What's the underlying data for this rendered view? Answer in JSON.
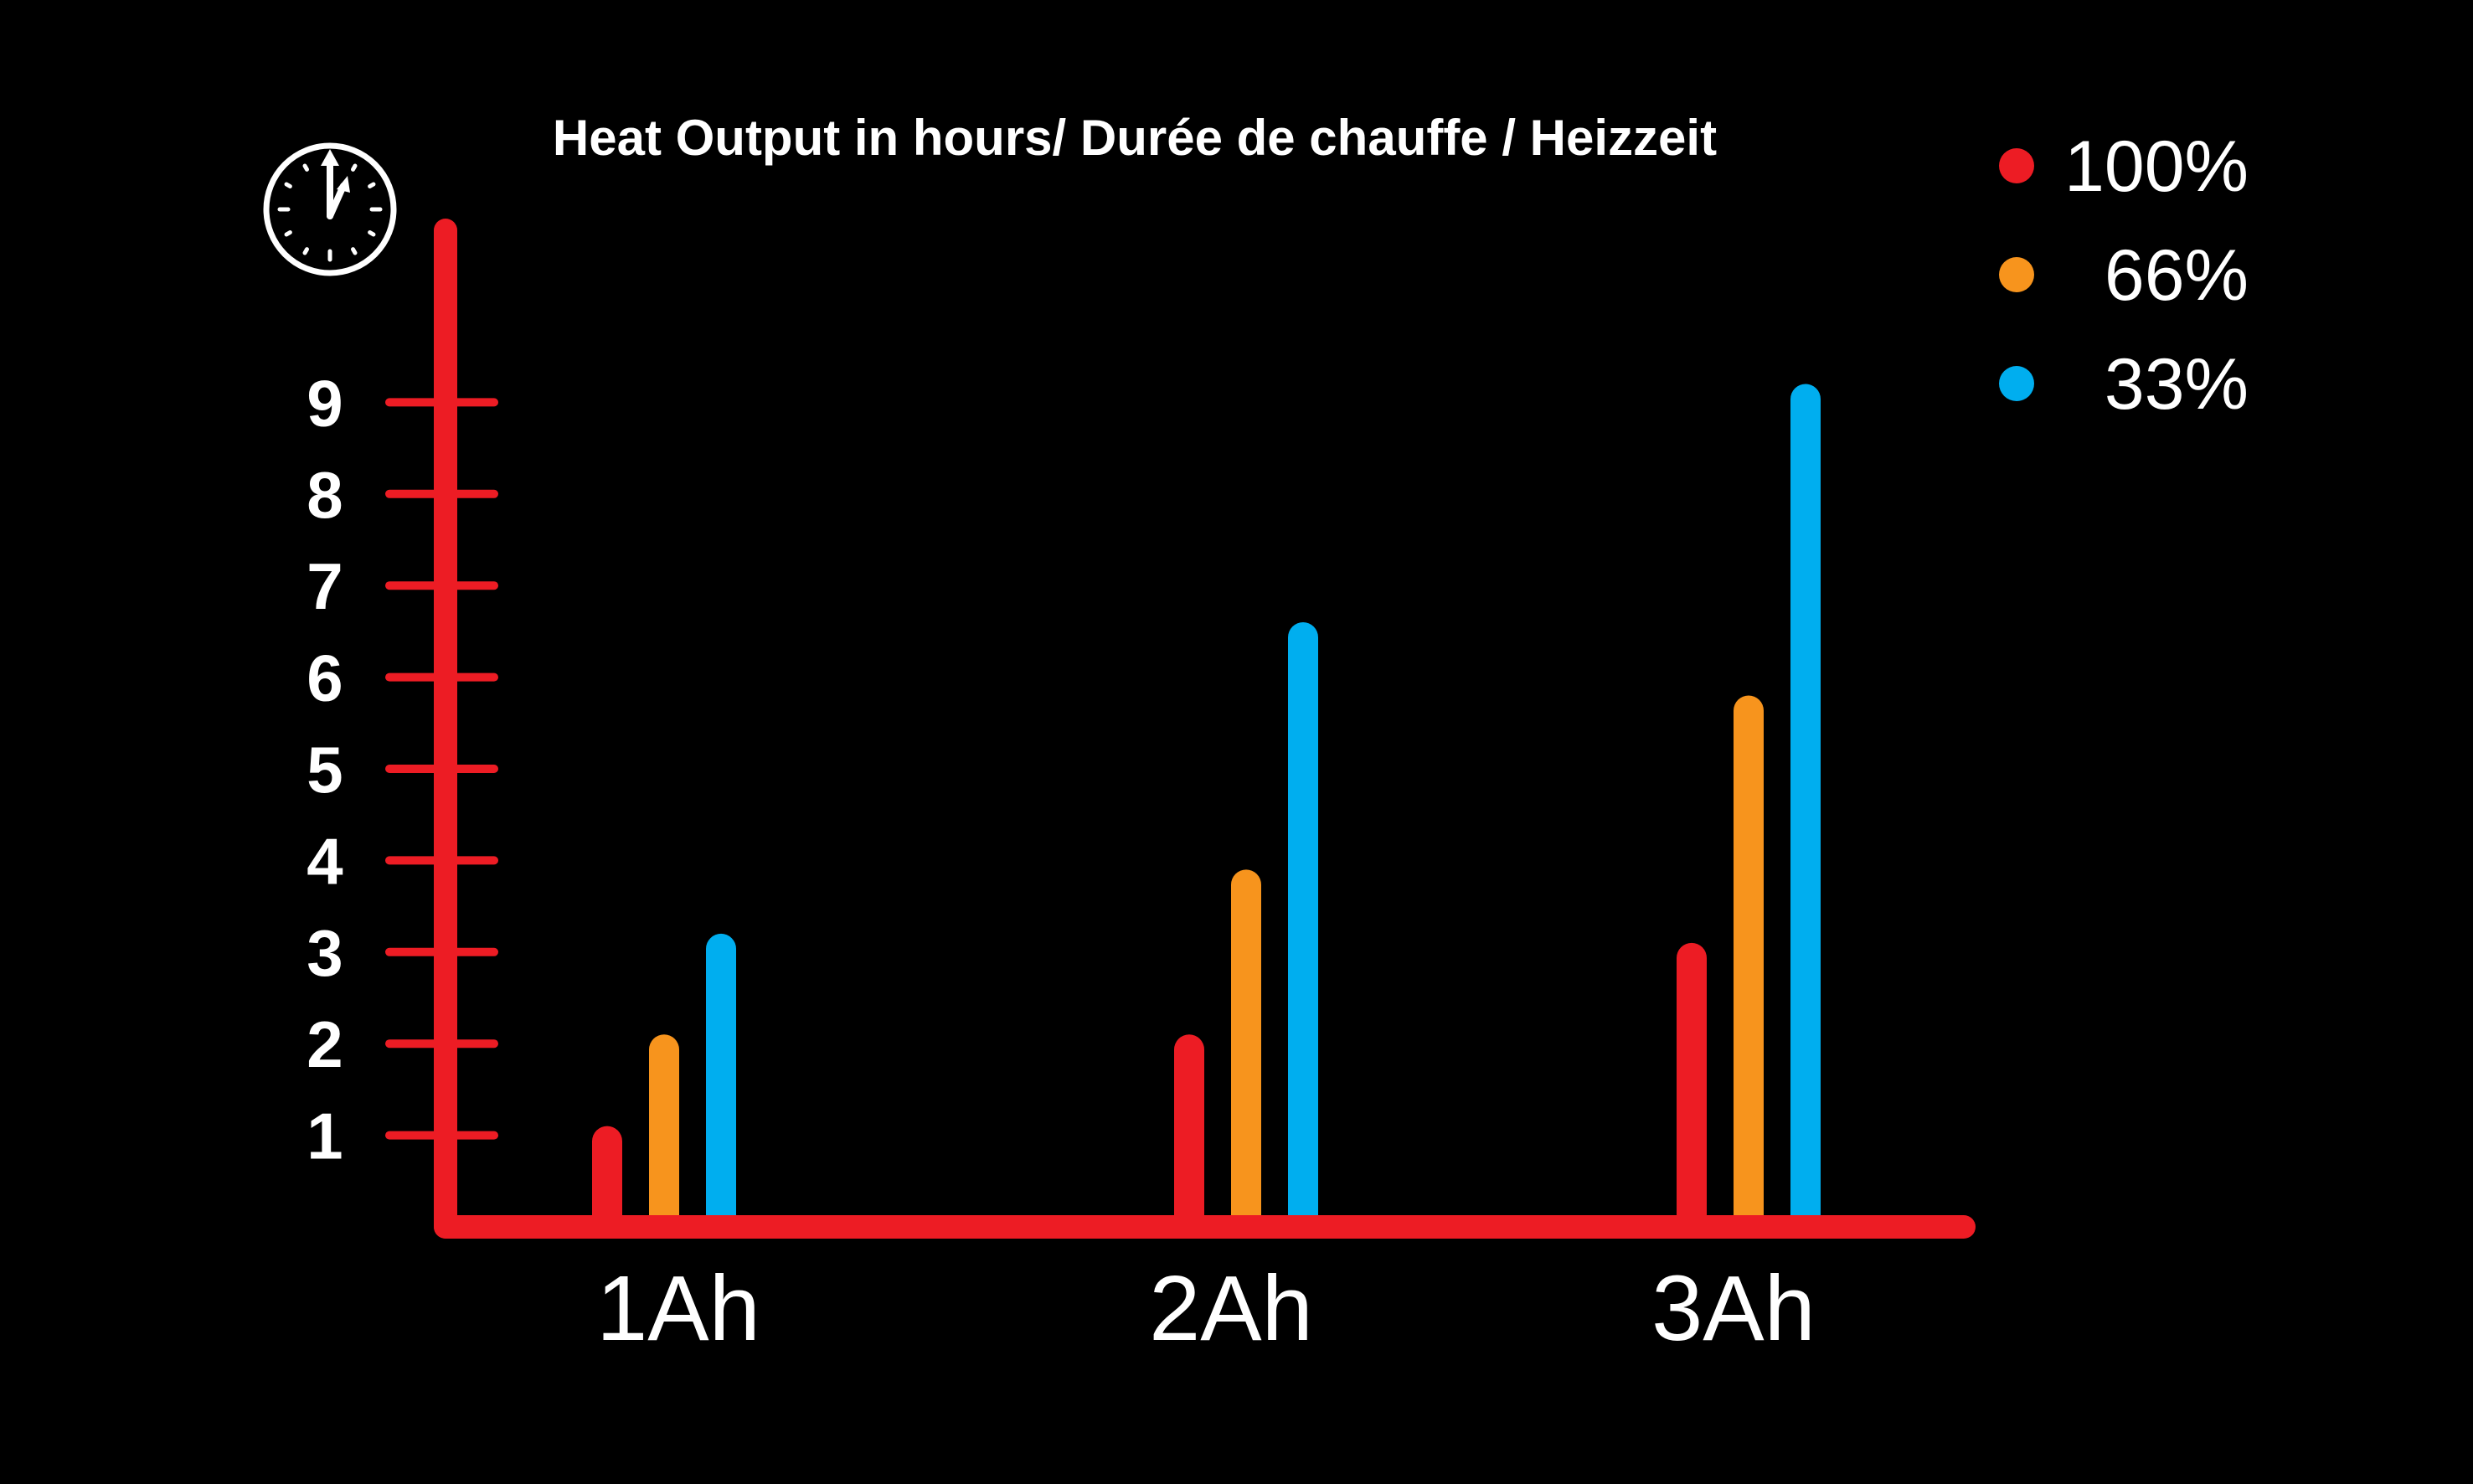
{
  "chart_data": {
    "type": "bar",
    "title": "Heat Output in hours/  Durée de chauffe / Heizzeit",
    "xlabel": "",
    "ylabel": "",
    "categories": [
      "1Ah",
      "2Ah",
      "3Ah"
    ],
    "y_ticks": [
      "1",
      "2",
      "3",
      "4",
      "5",
      "6",
      "7",
      "8",
      "9"
    ],
    "ylim": [
      0,
      10.5
    ],
    "grid": false,
    "legend_position": "top-right",
    "axis_color": "#ed1c24",
    "icon": "clock-icon",
    "series": [
      {
        "name": "100%",
        "color": "#ed1c24",
        "values": [
          1.1,
          2.1,
          3.1
        ]
      },
      {
        "name": "66%",
        "color": "#f7941d",
        "values": [
          2.1,
          3.9,
          5.8
        ]
      },
      {
        "name": "33%",
        "color": "#00aeef",
        "values": [
          3.2,
          6.6,
          9.2
        ]
      }
    ]
  }
}
